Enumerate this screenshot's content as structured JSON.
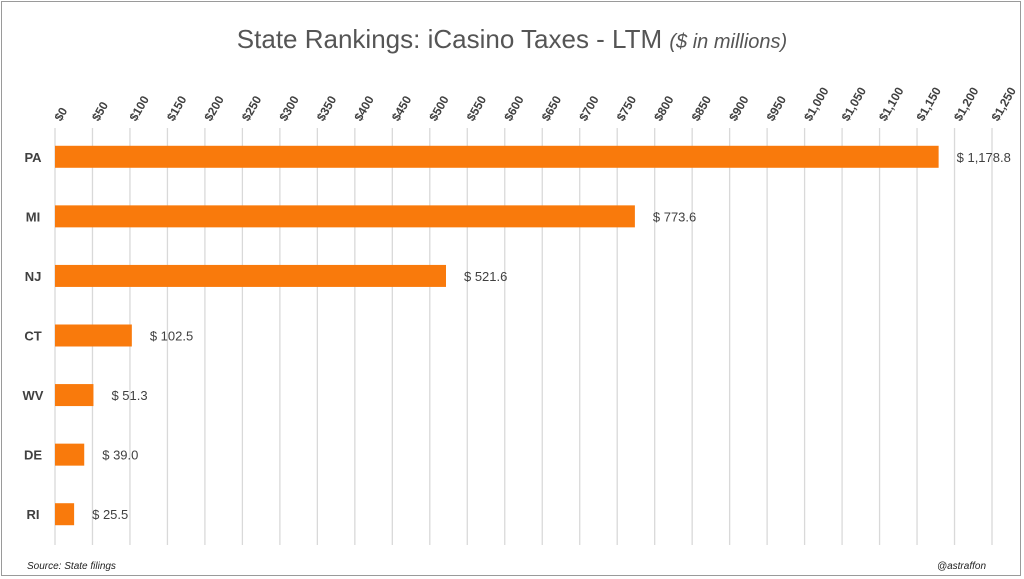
{
  "chart_data": {
    "type": "bar",
    "orientation": "horizontal",
    "title": "State Rankings: iCasino Taxes - LTM",
    "subtitle": "($ in millions)",
    "categories": [
      "PA",
      "MI",
      "NJ",
      "CT",
      "WV",
      "DE",
      "RI"
    ],
    "values": [
      1178.8,
      773.6,
      521.6,
      102.5,
      51.3,
      39.0,
      25.5
    ],
    "data_labels": [
      "$ 1,178.8",
      "$ 773.6",
      "$ 521.6",
      "$ 102.5",
      "$ 51.3",
      "$ 39.0",
      "$ 25.5"
    ],
    "xlim": [
      0,
      1250
    ],
    "x_tick_step": 50,
    "x_tick_labels": [
      "$0",
      "$50",
      "$100",
      "$150",
      "$200",
      "$250",
      "$300",
      "$350",
      "$400",
      "$450",
      "$500",
      "$550",
      "$600",
      "$650",
      "$700",
      "$750",
      "$800",
      "$850",
      "$900",
      "$950",
      "$1,000",
      "$1,050",
      "$1,100",
      "$1,150",
      "$1,200",
      "$1,250"
    ],
    "x_axis_position": "top",
    "grid": true,
    "legend": "none",
    "colors": {
      "bar": "#F97A0C",
      "grid": "#D9D9D9",
      "text": "#404040"
    }
  },
  "footer": {
    "source": "Source: State filings",
    "credit": "@astraffon"
  }
}
